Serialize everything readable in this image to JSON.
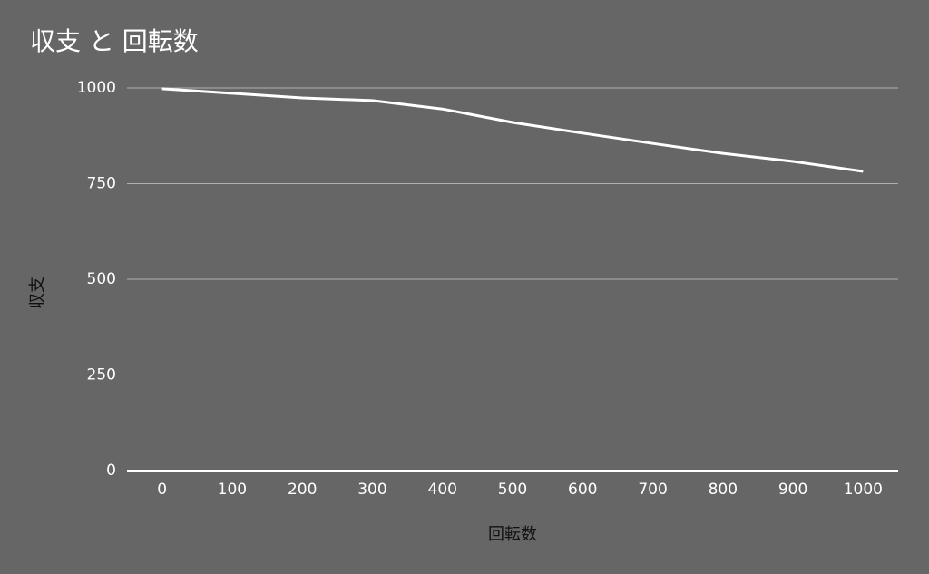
{
  "chart_data": {
    "type": "line",
    "title": "収支 と 回転数",
    "x_label": "回転数",
    "y_label": "収支",
    "x": [
      0,
      100,
      200,
      300,
      400,
      500,
      600,
      700,
      800,
      900,
      1000
    ],
    "series": [
      {
        "name": "収支",
        "color": "#ffffff",
        "values": [
          998,
          986,
          974,
          967,
          945,
          910,
          882,
          855,
          829,
          808,
          782
        ]
      }
    ],
    "xlim": [
      -50,
      1050
    ],
    "xticks": [
      0,
      100,
      200,
      300,
      400,
      500,
      600,
      700,
      800,
      900,
      1000
    ],
    "ylim": [
      0,
      1000
    ],
    "yticks": [
      0,
      250,
      500,
      750,
      1000
    ],
    "grid": true
  }
}
